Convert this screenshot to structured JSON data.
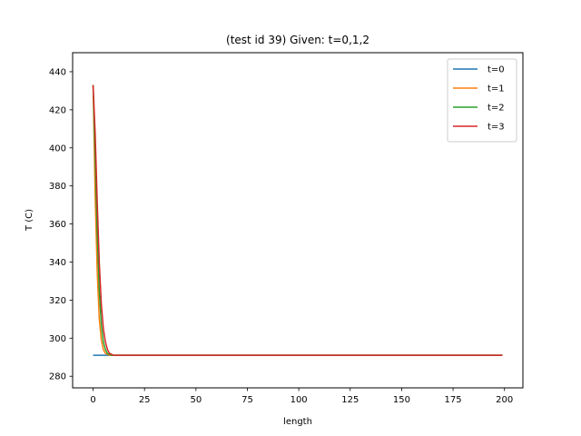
{
  "chart_data": {
    "type": "line",
    "title": "(test id 39) Given: t=0,1,2",
    "xlabel": "length",
    "ylabel": "T (C)",
    "xlim": [
      -9.95,
      208.95
    ],
    "ylim": [
      273.9,
      450.0
    ],
    "xticks": [
      0,
      25,
      50,
      75,
      100,
      125,
      150,
      175,
      200
    ],
    "yticks": [
      280,
      300,
      320,
      340,
      360,
      380,
      400,
      420,
      440
    ],
    "grid": false,
    "legend_position": "upper right",
    "series": [
      {
        "name": "t=0",
        "color": "#1f77b4",
        "points": [
          [
            0,
            291
          ],
          [
            5,
            291
          ],
          [
            10,
            291
          ],
          [
            50,
            291
          ],
          [
            100,
            291
          ],
          [
            150,
            291
          ],
          [
            199,
            291
          ]
        ]
      },
      {
        "name": "t=1",
        "color": "#ff7f0e",
        "points": [
          [
            0,
            433
          ],
          [
            1,
            375
          ],
          [
            2,
            335
          ],
          [
            3,
            310
          ],
          [
            4,
            299
          ],
          [
            5,
            294
          ],
          [
            6,
            292
          ],
          [
            8,
            291
          ],
          [
            10,
            291
          ],
          [
            50,
            291
          ],
          [
            100,
            291
          ],
          [
            150,
            291
          ],
          [
            199,
            291
          ]
        ]
      },
      {
        "name": "t=2",
        "color": "#2ca02c",
        "points": [
          [
            0,
            433
          ],
          [
            1,
            395
          ],
          [
            2,
            355
          ],
          [
            3,
            325
          ],
          [
            4,
            307
          ],
          [
            5,
            298
          ],
          [
            6,
            294
          ],
          [
            7,
            292
          ],
          [
            9,
            291
          ],
          [
            12,
            291
          ],
          [
            50,
            291
          ],
          [
            100,
            291
          ],
          [
            150,
            291
          ],
          [
            199,
            291
          ]
        ]
      },
      {
        "name": "t=3",
        "color": "#d62728",
        "points": [
          [
            0,
            433
          ],
          [
            1,
            408
          ],
          [
            2,
            372
          ],
          [
            3,
            340
          ],
          [
            4,
            318
          ],
          [
            5,
            305
          ],
          [
            6,
            298
          ],
          [
            7,
            294
          ],
          [
            8,
            292
          ],
          [
            10,
            291
          ],
          [
            15,
            291
          ],
          [
            50,
            291
          ],
          [
            100,
            291
          ],
          [
            150,
            291
          ],
          [
            199,
            291
          ]
        ]
      }
    ]
  }
}
